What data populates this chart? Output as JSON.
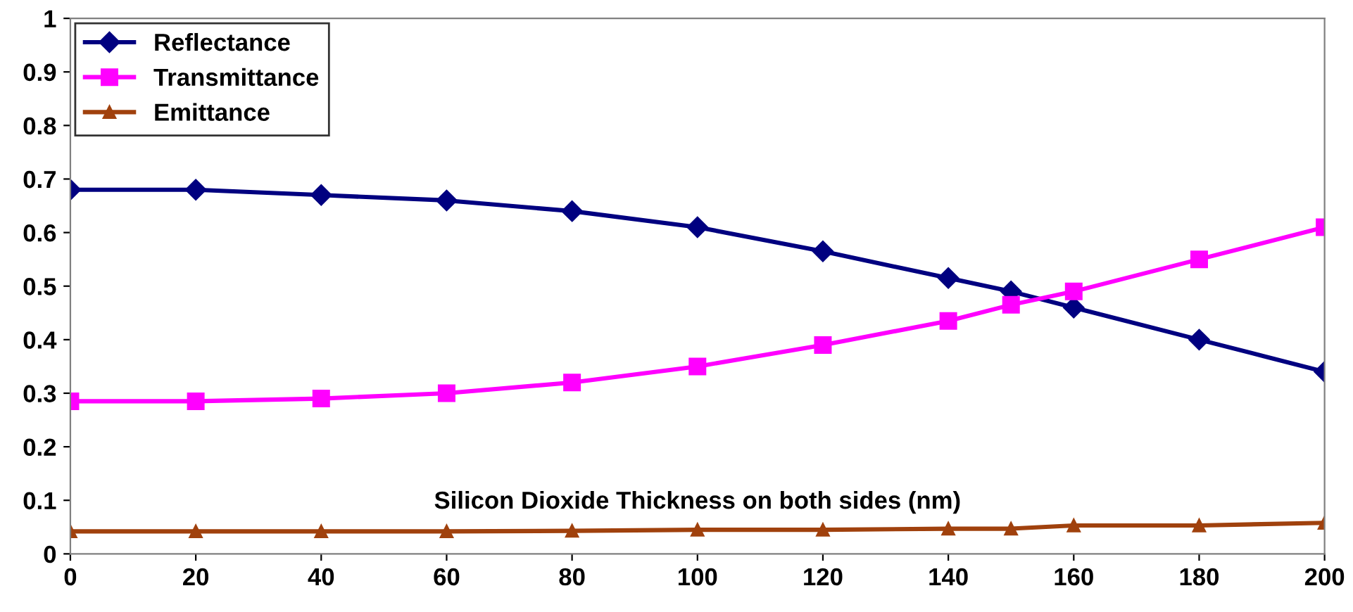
{
  "chart_data": {
    "type": "line",
    "xlabel": "Silicon Dioxide Thickness on both sides (nm)",
    "x": [
      0,
      20,
      40,
      60,
      80,
      100,
      120,
      140,
      150,
      160,
      180,
      200
    ],
    "series": [
      {
        "name": "Reflectance",
        "color": "#000080",
        "marker": "diamond",
        "values": [
          0.68,
          0.68,
          0.67,
          0.66,
          0.64,
          0.61,
          0.565,
          0.515,
          0.49,
          0.46,
          0.4,
          0.34
        ]
      },
      {
        "name": "Transmittance",
        "color": "#ff00ff",
        "marker": "square",
        "values": [
          0.285,
          0.285,
          0.29,
          0.3,
          0.32,
          0.35,
          0.39,
          0.435,
          0.465,
          0.49,
          0.55,
          0.61
        ]
      },
      {
        "name": "Emittance",
        "color": "#a0410d",
        "marker": "triangle",
        "values": [
          0.042,
          0.042,
          0.042,
          0.042,
          0.043,
          0.045,
          0.045,
          0.047,
          0.047,
          0.053,
          0.053,
          0.058
        ]
      }
    ],
    "xlim": [
      0,
      200
    ],
    "xticks": [
      0,
      20,
      40,
      60,
      80,
      100,
      120,
      140,
      160,
      180,
      200
    ],
    "ylim": [
      0,
      1
    ],
    "yticks": [
      0,
      0.1,
      0.2,
      0.3,
      0.4,
      0.5,
      0.6,
      0.7,
      0.8,
      0.9,
      1
    ],
    "grid": false,
    "legend": "top left",
    "line_style": "solid"
  }
}
